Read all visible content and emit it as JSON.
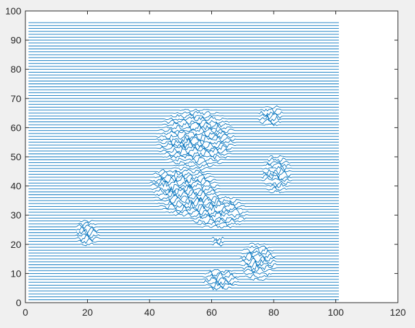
{
  "chart_data": {
    "type": "line",
    "title": "",
    "xlabel": "",
    "ylabel": "",
    "xlim": [
      0,
      120
    ],
    "ylim": [
      0,
      100
    ],
    "x_ticks": [
      0,
      20,
      40,
      60,
      80,
      100,
      120
    ],
    "y_ticks": [
      0,
      10,
      20,
      30,
      40,
      50,
      60,
      70,
      80,
      90,
      100
    ],
    "x_tick_labels": [
      "0",
      "20",
      "40",
      "60",
      "80",
      "100",
      "120"
    ],
    "y_tick_labels": [
      "0",
      "10",
      "20",
      "30",
      "40",
      "50",
      "60",
      "70",
      "80",
      "90",
      "100"
    ],
    "grid": false,
    "line_color": "#0072bd",
    "background_color": "#ffffff",
    "figure_color": "#f0f0f0",
    "lines": {
      "x_range": [
        1,
        101
      ],
      "y_values": [
        1,
        2,
        3,
        4,
        5,
        6,
        7,
        8,
        9,
        10,
        11,
        12,
        13,
        14,
        15,
        16,
        17,
        18,
        19,
        20,
        21,
        22,
        23,
        24,
        25,
        26,
        27,
        28,
        29,
        30,
        31,
        32,
        33,
        34,
        35,
        36,
        37,
        38,
        39,
        40,
        41,
        42,
        43,
        44,
        45,
        46,
        47,
        48,
        49,
        50,
        51,
        52,
        53,
        54,
        55,
        56,
        57,
        58,
        59,
        60,
        61,
        62,
        63,
        64,
        65,
        66,
        67,
        68,
        69,
        70,
        71,
        72,
        73,
        74,
        75,
        76,
        77,
        78,
        79,
        80,
        81,
        82,
        83,
        84,
        85,
        86,
        87,
        88,
        89,
        90,
        91,
        92,
        93,
        94,
        95,
        96
      ]
    },
    "disturbed_regions": [
      {
        "cx": 55,
        "cy": 56,
        "rx": 13,
        "ry": 11
      },
      {
        "cx": 52,
        "cy": 38,
        "rx": 11,
        "ry": 9
      },
      {
        "cx": 62,
        "cy": 31,
        "rx": 10,
        "ry": 6
      },
      {
        "cx": 46,
        "cy": 41,
        "rx": 6,
        "ry": 5
      },
      {
        "cx": 20,
        "cy": 24,
        "rx": 4,
        "ry": 5
      },
      {
        "cx": 79,
        "cy": 64,
        "rx": 4,
        "ry": 4
      },
      {
        "cx": 81,
        "cy": 44,
        "rx": 5,
        "ry": 7
      },
      {
        "cx": 75,
        "cy": 14,
        "rx": 6,
        "ry": 7
      },
      {
        "cx": 63,
        "cy": 8,
        "rx": 6,
        "ry": 4
      },
      {
        "cx": 62,
        "cy": 21,
        "rx": 2,
        "ry": 2
      }
    ]
  }
}
